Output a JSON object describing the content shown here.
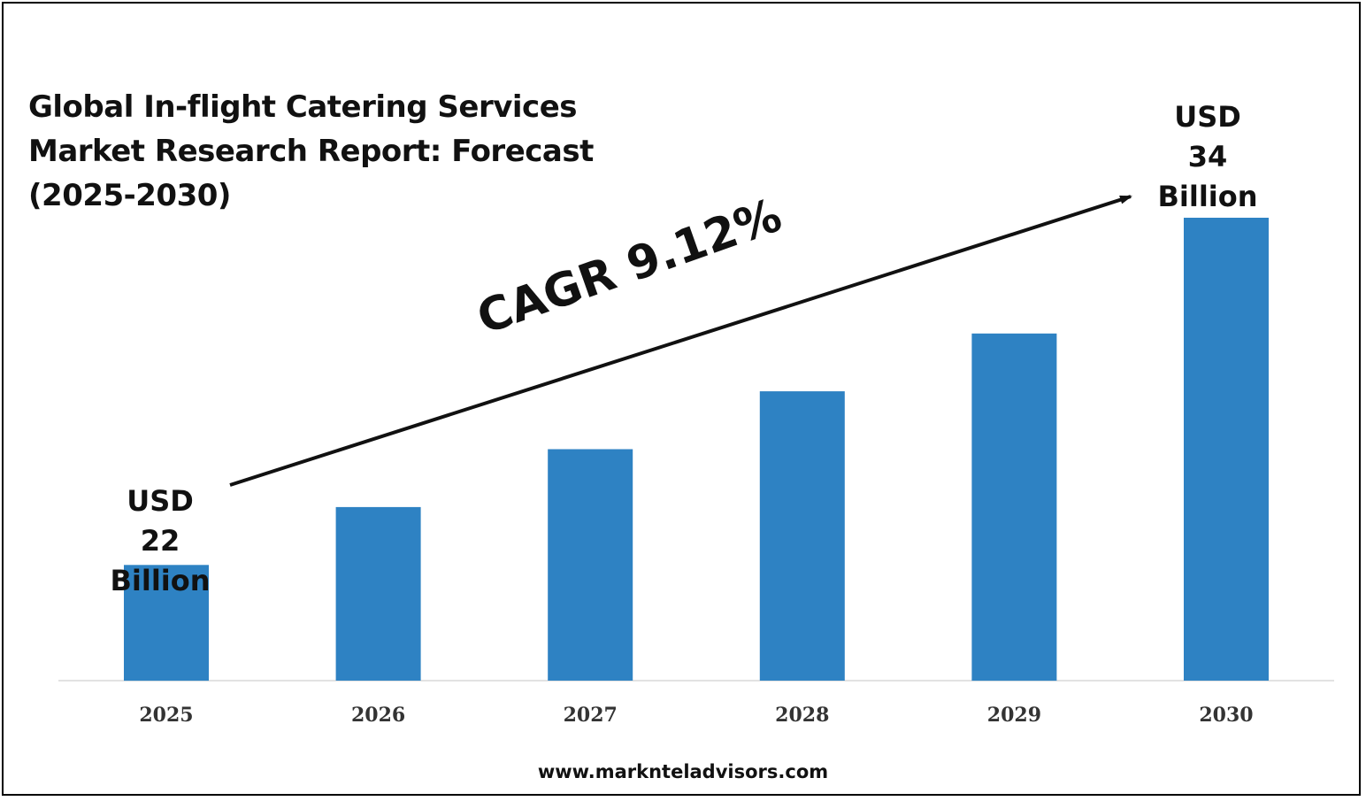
{
  "chart_data": {
    "type": "bar",
    "title": "Global In-flight Catering Services Market Research Report: Forecast (2025-2030)",
    "title_lines": [
      "Global In-flight Catering Services",
      "Market Research Report: Forecast",
      "(2025-2030)"
    ],
    "categories": [
      "2025",
      "2026",
      "2027",
      "2028",
      "2029",
      "2030"
    ],
    "values": [
      22,
      24,
      26,
      28,
      30,
      34
    ],
    "ylim": [
      18,
      35
    ],
    "grid": false,
    "bar_color": "#2E82C3",
    "annotations": {
      "start_label": [
        "USD",
        "22",
        "Billion"
      ],
      "end_label": [
        "USD",
        "34",
        "Billion"
      ],
      "cagr": "CAGR 9.12%"
    }
  },
  "footer": "www.marknteladvisors.com"
}
